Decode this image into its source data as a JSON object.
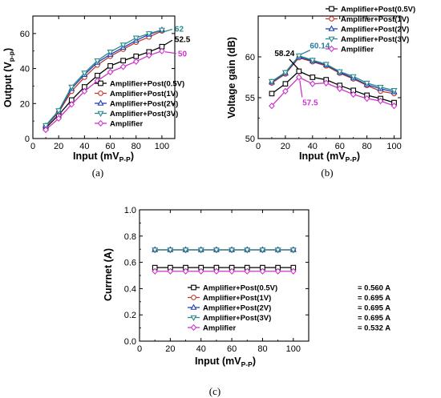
{
  "chart_data": [
    {
      "panel": "a",
      "type": "line",
      "caption": "(a)",
      "ylabel": "Output (V",
      "ylabel_sub": "p-p",
      "ylabel_end": ")",
      "xlabel": "Input (mV",
      "xlabel_sub": "P-P",
      "xlabel_end": ")",
      "xlim": [
        0,
        110
      ],
      "ylim": [
        0,
        70
      ],
      "xticks": [
        0,
        20,
        40,
        60,
        80,
        100
      ],
      "yticks": [
        0,
        20,
        40,
        60
      ],
      "x": [
        10,
        20,
        30,
        40,
        50,
        60,
        70,
        80,
        90,
        100
      ],
      "series": [
        {
          "name": "Amplifier+Post(0.5V)",
          "marker": "square",
          "color": "#000000",
          "values": [
            6,
            13.5,
            22,
            29.5,
            36,
            41.5,
            44.5,
            47,
            49.5,
            52.5
          ]
        },
        {
          "name": "Amplifier+Post(1V)",
          "marker": "circle",
          "color": "#c0392b",
          "values": [
            7,
            15,
            27,
            35,
            42,
            47,
            51,
            55,
            58,
            61.5
          ]
        },
        {
          "name": "Amplifier+Post(2V)",
          "marker": "triangle-up",
          "color": "#1f3fb5",
          "values": [
            7.2,
            15.5,
            28.5,
            36.5,
            43.5,
            48,
            52,
            56,
            59.5,
            62
          ]
        },
        {
          "name": "Amplifier+Post(3V)",
          "marker": "triangle-down",
          "color": "#2a8a8a",
          "values": [
            7.5,
            16,
            29.5,
            37.5,
            44.5,
            49.5,
            53.5,
            57.5,
            60,
            62
          ]
        },
        {
          "name": "Amplifier",
          "marker": "diamond",
          "color": "#cc33cc",
          "values": [
            5,
            11.5,
            19.5,
            27,
            33,
            38,
            41,
            44,
            47.5,
            50
          ]
        }
      ],
      "annotations": [
        {
          "text": "62",
          "color": "#2a8a8a",
          "x": 100,
          "y": 62
        },
        {
          "text": "52.5",
          "color": "#000000",
          "x": 100,
          "y": 52.5
        },
        {
          "text": "50",
          "color": "#cc33cc",
          "x": 100,
          "y": 50
        }
      ],
      "legend": "center-right"
    },
    {
      "panel": "b",
      "type": "line",
      "caption": "(b)",
      "ylabel": "Voltage gain (dB)",
      "xlabel": "Input (mV",
      "xlabel_sub": "P-P",
      "xlabel_end": ")",
      "xlim": [
        0,
        105
      ],
      "ylim": [
        50,
        65
      ],
      "xticks": [
        0,
        20,
        40,
        60,
        80,
        100
      ],
      "yticks": [
        50,
        55,
        60
      ],
      "x": [
        10,
        20,
        30,
        40,
        50,
        60,
        70,
        80,
        90,
        100
      ],
      "series": [
        {
          "name": "Amplifier+Post(0.5V)",
          "marker": "square",
          "color": "#000000",
          "values": [
            55.5,
            56.7,
            58.24,
            57.5,
            57.2,
            56.5,
            55.9,
            55.3,
            54.9,
            54.4
          ]
        },
        {
          "name": "Amplifier+Post(1V)",
          "marker": "circle",
          "color": "#c0392b",
          "values": [
            56.8,
            57.9,
            59.9,
            59.4,
            58.9,
            58.0,
            57.3,
            56.5,
            55.8,
            55.5
          ]
        },
        {
          "name": "Amplifier+Post(2V)",
          "marker": "triangle-up",
          "color": "#1f3fb5",
          "values": [
            56.9,
            58.0,
            60.0,
            59.5,
            59.0,
            58.1,
            57.4,
            56.6,
            56.1,
            55.7
          ]
        },
        {
          "name": "Amplifier+Post(3V)",
          "marker": "triangle-down",
          "color": "#2a8a8a",
          "values": [
            57.0,
            58.1,
            60.14,
            59.6,
            59.1,
            58.2,
            57.6,
            56.8,
            56.3,
            55.9
          ]
        },
        {
          "name": "Amplifier",
          "marker": "diamond",
          "color": "#cc33cc",
          "values": [
            54.0,
            55.8,
            57.5,
            56.7,
            56.8,
            56.1,
            55.4,
            54.9,
            54.6,
            54.0
          ]
        }
      ],
      "annotations": [
        {
          "text": "58.24",
          "color": "#000000",
          "x": 30,
          "y": 58.24
        },
        {
          "text": "60.14",
          "color": "#2a7a9a",
          "x": 30,
          "y": 60.14
        },
        {
          "text": "57.5",
          "color": "#cc33cc",
          "x": 30,
          "y": 57.5
        }
      ],
      "legend": "top-right"
    },
    {
      "panel": "c",
      "type": "line",
      "caption": "(c)",
      "ylabel": "Currnet (A)",
      "xlabel": "Input (mV",
      "xlabel_sub": "P-P",
      "xlabel_end": ")",
      "xlim": [
        0,
        110
      ],
      "ylim": [
        0.0,
        1.0
      ],
      "xticks": [
        0,
        20,
        40,
        60,
        80,
        100
      ],
      "yticks": [
        0.0,
        0.2,
        0.4,
        0.6,
        0.8,
        1.0
      ],
      "ytick_labels": [
        "0.0",
        "0.2",
        "0.4",
        "0.6",
        "0.8",
        "1.0"
      ],
      "x": [
        10,
        20,
        30,
        40,
        50,
        60,
        70,
        80,
        90,
        100
      ],
      "series": [
        {
          "name": "Amplifier+Post(0.5V)",
          "value_label": "= 0.560 A",
          "marker": "square",
          "color": "#000000",
          "values": [
            0.56,
            0.56,
            0.56,
            0.56,
            0.56,
            0.56,
            0.56,
            0.56,
            0.56,
            0.56
          ]
        },
        {
          "name": "Amplifier+Post(1V)",
          "value_label": "= 0.695 A",
          "marker": "circle",
          "color": "#c0392b",
          "values": [
            0.695,
            0.695,
            0.695,
            0.695,
            0.695,
            0.695,
            0.695,
            0.695,
            0.695,
            0.695
          ]
        },
        {
          "name": "Amplifier+Post(2V)",
          "value_label": "= 0.695 A",
          "marker": "triangle-up",
          "color": "#1f3fb5",
          "values": [
            0.695,
            0.695,
            0.695,
            0.695,
            0.695,
            0.695,
            0.695,
            0.695,
            0.695,
            0.695
          ]
        },
        {
          "name": "Amplifier+Post(3V)",
          "value_label": "= 0.695 A",
          "marker": "triangle-down",
          "color": "#2a8a8a",
          "values": [
            0.695,
            0.695,
            0.695,
            0.695,
            0.695,
            0.695,
            0.695,
            0.695,
            0.695,
            0.695
          ]
        },
        {
          "name": "Amplifier",
          "value_label": "= 0.532 A",
          "marker": "diamond",
          "color": "#cc33cc",
          "values": [
            0.532,
            0.532,
            0.532,
            0.532,
            0.532,
            0.532,
            0.532,
            0.532,
            0.532,
            0.532
          ]
        }
      ],
      "legend": "bottom-center"
    }
  ]
}
